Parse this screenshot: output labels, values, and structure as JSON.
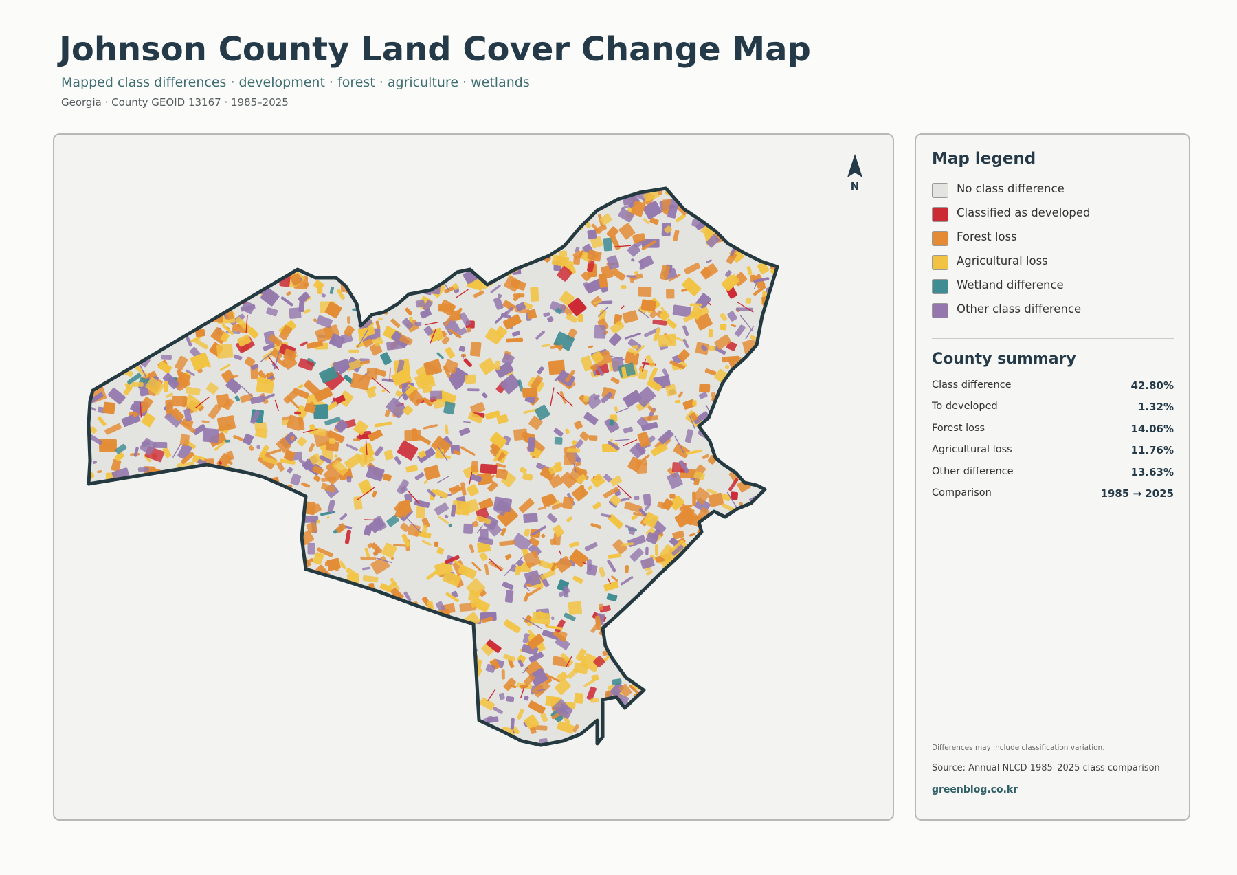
{
  "header": {
    "title": "Johnson County Land Cover Change Map",
    "subtitle": "Mapped class differences · development · forest · agriculture · wetlands",
    "meta": "Georgia · County GEOID 13167 · 1985–2025"
  },
  "map": {
    "north_label": "N",
    "colors": {
      "no_change": "#e3e3e0",
      "developed": "#cc2a35",
      "forest_loss": "#e38c35",
      "agricultural_loss": "#f2c342",
      "wetland": "#3f8c92",
      "other": "#9478ad",
      "outline": "#253a40",
      "background": "#f3f3f1"
    }
  },
  "legend": {
    "title": "Map legend",
    "items": [
      {
        "label": "No class difference",
        "color": "#e3e3e0"
      },
      {
        "label": "Classified as developed",
        "color": "#cc2a35"
      },
      {
        "label": "Forest loss",
        "color": "#e38c35"
      },
      {
        "label": "Agricultural loss",
        "color": "#f2c342"
      },
      {
        "label": "Wetland difference",
        "color": "#3f8c92"
      },
      {
        "label": "Other class difference",
        "color": "#9478ad"
      }
    ]
  },
  "summary": {
    "title": "County summary",
    "rows": [
      {
        "label": "Class difference",
        "value": "42.80%"
      },
      {
        "label": "To developed",
        "value": "1.32%"
      },
      {
        "label": "Forest loss",
        "value": "14.06%"
      },
      {
        "label": "Agricultural loss",
        "value": "11.76%"
      },
      {
        "label": "Other difference",
        "value": "13.63%"
      },
      {
        "label": "Comparison",
        "value": "1985 → 2025"
      }
    ]
  },
  "footer": {
    "note": "Differences may include classification variation.",
    "source": "Source: Annual NLCD 1985–2025 class comparison",
    "site": "greenblog.co.kr"
  }
}
